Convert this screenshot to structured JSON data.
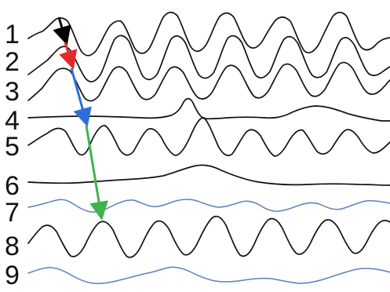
{
  "rows": [
    {
      "label": "1",
      "kind": "black"
    },
    {
      "label": "2",
      "kind": "black"
    },
    {
      "label": "3",
      "kind": "black"
    },
    {
      "label": "4",
      "kind": "black"
    },
    {
      "label": "5",
      "kind": "black"
    },
    {
      "label": "6",
      "kind": "black"
    },
    {
      "label": "7",
      "kind": "blue"
    },
    {
      "label": "8",
      "kind": "black"
    },
    {
      "label": "9",
      "kind": "blue"
    }
  ],
  "arrows": [
    {
      "name": "black-arrow",
      "color": "#000000",
      "from_row": "1",
      "to_row": "2"
    },
    {
      "name": "red-arrow",
      "color": "#e8262b",
      "from_row": "1",
      "to_row": "2"
    },
    {
      "name": "blue-arrow",
      "color": "#2e6fd6",
      "from_row": "3",
      "to_row": "4"
    },
    {
      "name": "green-arrow",
      "color": "#3fb34f",
      "from_row": "5",
      "to_row": "7"
    }
  ],
  "colors": {
    "black_trace": "#111111",
    "blue_trace": "#5b7fc0"
  }
}
